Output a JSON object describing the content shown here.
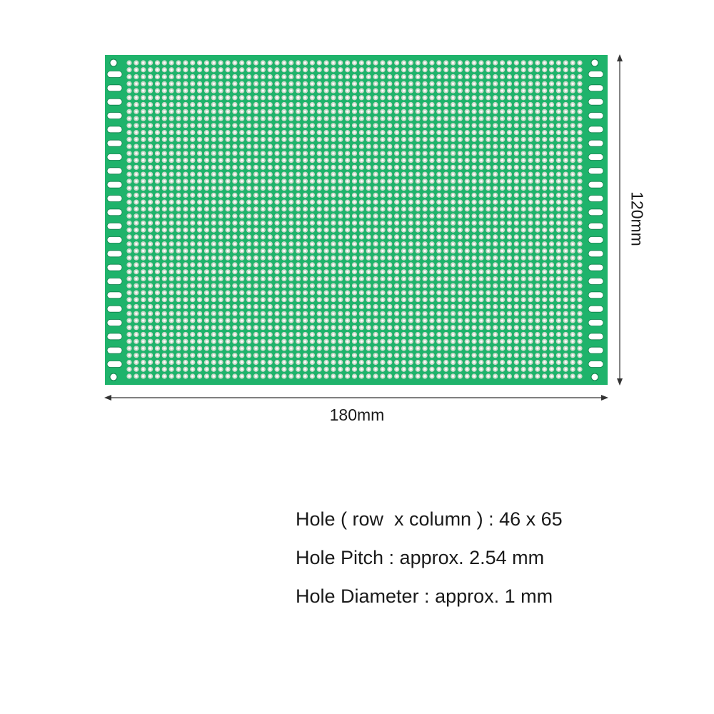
{
  "figure": {
    "board_color": "#1fb36b",
    "pad_color": "#c9d9c9",
    "hole_color": "#ffffff"
  },
  "dimensions": {
    "width_label": "180mm",
    "height_label": "120mm"
  },
  "specs": {
    "holes": "Hole ( row  x column ) : 46 x 65",
    "pitch": "Hole Pitch : approx. 2.54 mm",
    "diameter": "Hole Diameter : approx. 1 mm"
  }
}
